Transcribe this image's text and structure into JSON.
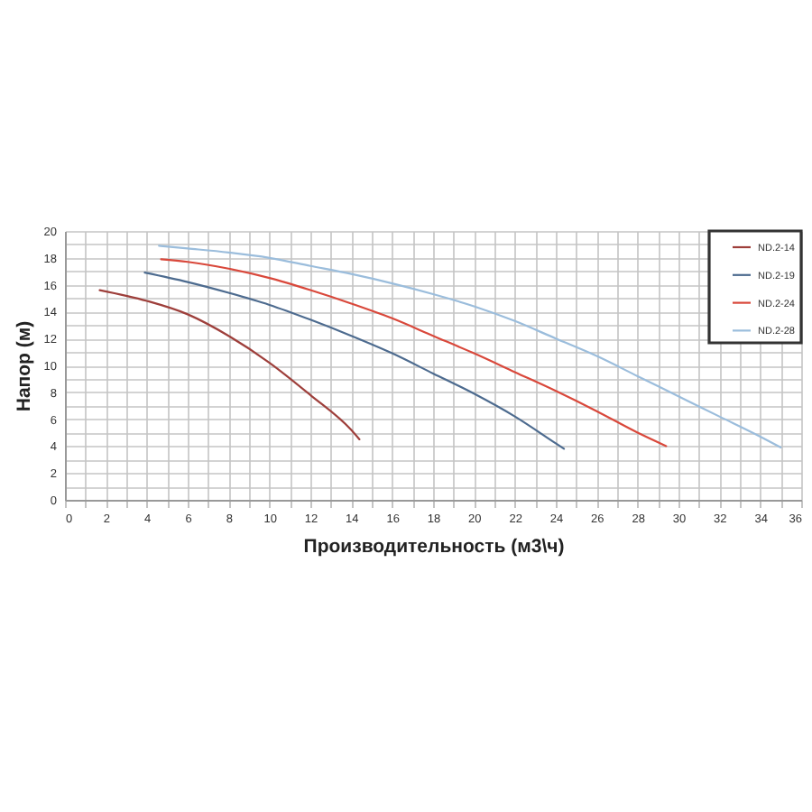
{
  "chart_data": {
    "type": "line",
    "xlabel": "Производительность (м3\\ч)",
    "ylabel": "Напор (м)",
    "series": [
      {
        "name": "ND.2-14",
        "color": "#9e3f3b",
        "x": [
          1.7,
          4,
          6,
          8,
          10,
          12,
          14,
          14.4
        ],
        "values": [
          15.6,
          14.8,
          13.8,
          12.2,
          10.2,
          7.8,
          5.2,
          4.5
        ]
      },
      {
        "name": "ND.2-19",
        "color": "#4d6b8f",
        "x": [
          3.9,
          6,
          8,
          10,
          12,
          14,
          16,
          18,
          20,
          22,
          24,
          24.4
        ],
        "values": [
          16.9,
          16.2,
          15.4,
          14.5,
          13.4,
          12.2,
          10.9,
          9.4,
          7.9,
          6.2,
          4.2,
          3.8
        ]
      },
      {
        "name": "ND.2-24",
        "color": "#d9483b",
        "x": [
          4.7,
          6,
          8,
          10,
          12,
          14,
          16,
          18,
          20,
          22,
          24,
          26,
          28,
          29.4
        ],
        "values": [
          17.9,
          17.7,
          17.2,
          16.5,
          15.6,
          14.6,
          13.5,
          12.2,
          10.9,
          9.5,
          8.1,
          6.6,
          5.0,
          4.0
        ]
      },
      {
        "name": "ND.2-28",
        "color": "#9bbddc",
        "x": [
          4.6,
          6,
          8,
          10,
          12,
          14,
          16,
          18,
          20,
          22,
          24,
          26,
          28,
          30,
          32,
          34,
          35.0
        ],
        "values": [
          18.9,
          18.7,
          18.4,
          18.0,
          17.4,
          16.8,
          16.1,
          15.3,
          14.4,
          13.3,
          12.0,
          10.7,
          9.2,
          7.7,
          6.2,
          4.7,
          3.9
        ]
      }
    ],
    "xlim": [
      0,
      36
    ],
    "xticks": [
      0,
      {
        "value": 1,
        "label": null
      },
      2,
      {
        "value": 3,
        "label": null
      },
      4,
      {
        "value": 5,
        "label": null
      },
      6,
      {
        "value": 7,
        "label": null
      },
      8,
      {
        "value": 9,
        "label": null
      },
      10,
      {
        "value": 11,
        "label": null
      },
      12,
      {
        "value": 13,
        "label": null
      },
      14,
      {
        "value": 15,
        "label": null
      },
      16,
      {
        "value": 17,
        "label": null
      },
      18,
      {
        "value": 19,
        "label": null
      },
      20,
      {
        "value": 21,
        "label": null
      },
      22,
      {
        "value": 23,
        "label": null
      },
      24,
      {
        "value": 25,
        "label": null
      },
      26,
      {
        "value": 27,
        "label": null
      },
      28,
      {
        "value": 29,
        "label": null
      },
      30,
      {
        "value": 31,
        "label": null
      },
      32,
      {
        "value": 33,
        "label": null
      },
      34,
      {
        "value": 35,
        "label": null
      },
      36
    ],
    "ylim": [
      0,
      20
    ],
    "yticks": [
      0,
      {
        "value": 1,
        "label": null
      },
      2,
      {
        "value": 3,
        "label": null
      },
      4,
      {
        "value": 5,
        "label": null
      },
      6,
      {
        "value": 7,
        "label": null
      },
      8,
      {
        "value": 9,
        "label": null
      },
      10,
      {
        "value": 11,
        "label": null
      },
      12,
      {
        "value": 13,
        "label": null
      },
      14,
      {
        "value": 15,
        "label": null
      },
      16,
      {
        "value": 17,
        "label": null
      },
      18,
      {
        "value": 19,
        "label": null
      },
      20
    ],
    "grid": true,
    "legend": "top right"
  }
}
